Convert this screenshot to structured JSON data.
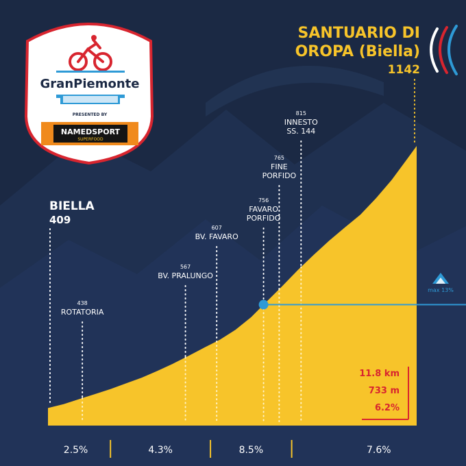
{
  "logo": {
    "brand": "GranPiemonte",
    "presented_by": "PRESENTED BY",
    "sponsor": "NAMEDSPORT",
    "sponsor_sub": "SUPERFOOD"
  },
  "start": {
    "name": "BIELLA",
    "altitude": "409"
  },
  "finish": {
    "name_line1": "SANTUARIO DI",
    "name_line2": "OROPA (Biella)",
    "altitude": "1142"
  },
  "waypoints": [
    {
      "name_lines": [
        "ROTATORIA"
      ],
      "altitude": "438"
    },
    {
      "name_lines": [
        "BV. PRALUNGO"
      ],
      "altitude": "567"
    },
    {
      "name_lines": [
        "BV. FAVARO"
      ],
      "altitude": "607"
    },
    {
      "name_lines": [
        "FAVARO",
        "PORFIDO"
      ],
      "altitude": "756"
    },
    {
      "name_lines": [
        "FINE",
        "PORFIDO"
      ],
      "altitude": "765"
    },
    {
      "name_lines": [
        "INNESTO",
        "SS. 144"
      ],
      "altitude": "815"
    }
  ],
  "max_gradient": {
    "label": "max 13%"
  },
  "stats": {
    "distance": "11.8 km",
    "elevation": "733 m",
    "avg_gradient": "6.2%"
  },
  "segments": [
    "2.5%",
    "4.3%",
    "8.5%",
    "7.6%"
  ],
  "colors": {
    "background": "#1b2944",
    "profile": "#f7c42a",
    "accent_red": "#d8252f",
    "accent_blue": "#2e9ad6"
  },
  "chart_data": {
    "type": "area",
    "x_unit": "km",
    "y_unit": "m",
    "x": [
      0,
      0.5,
      1.0,
      1.5,
      2.0,
      2.5,
      3.0,
      3.5,
      4.0,
      4.5,
      5.0,
      5.5,
      6.0,
      6.5,
      7.0,
      7.5,
      8.0,
      8.5,
      9.0,
      9.5,
      10.0,
      10.5,
      11.0,
      11.5,
      11.8
    ],
    "y": [
      409,
      420,
      434,
      448,
      462,
      478,
      494,
      513,
      533,
      555,
      578,
      600,
      628,
      663,
      707,
      750,
      795,
      837,
      877,
      914,
      950,
      996,
      1047,
      1106,
      1142
    ],
    "ylim": [
      360,
      1142
    ],
    "segment_boundaries_km": [
      2.0,
      5.2,
      7.8,
      11.8
    ],
    "segment_gradients": [
      "2.5%",
      "4.3%",
      "8.5%",
      "7.6%"
    ],
    "waypoints_km": [
      1.1,
      4.4,
      5.4,
      6.9,
      7.4,
      8.1
    ],
    "max_gradient_km": 6.9
  }
}
